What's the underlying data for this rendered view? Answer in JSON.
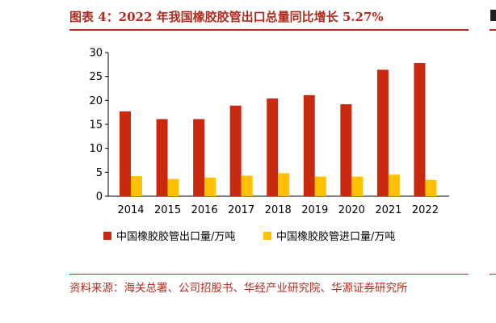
{
  "figure": {
    "title": "图表 4：2022 年我国橡胶胶管出口总量同比增长 5.27%",
    "source": "资料来源：海关总署、公司招股书、华经产业研究院、华源证券研究所"
  },
  "colors": {
    "accent": "#b22a1e",
    "export_bar": "#c8290f",
    "import_bar": "#ffc000"
  },
  "chart_data": {
    "type": "bar",
    "categories": [
      "2014",
      "2015",
      "2016",
      "2017",
      "2018",
      "2019",
      "2020",
      "2021",
      "2022"
    ],
    "series": [
      {
        "name": "中国橡胶胶管出口量/万吨",
        "color": "#c8290f",
        "values": [
          17.7,
          16.1,
          16.1,
          18.9,
          20.4,
          21.1,
          19.2,
          26.4,
          27.8
        ]
      },
      {
        "name": "中国橡胶胶管进口量/万吨",
        "color": "#ffc000",
        "values": [
          4.2,
          3.6,
          3.9,
          4.3,
          4.8,
          4.1,
          4.1,
          4.5,
          3.4
        ]
      }
    ],
    "yticks": [
      "0",
      "5",
      "10",
      "15",
      "20",
      "25",
      "30"
    ],
    "ylim": [
      0,
      30
    ],
    "grid": false,
    "legend": "bottom"
  }
}
